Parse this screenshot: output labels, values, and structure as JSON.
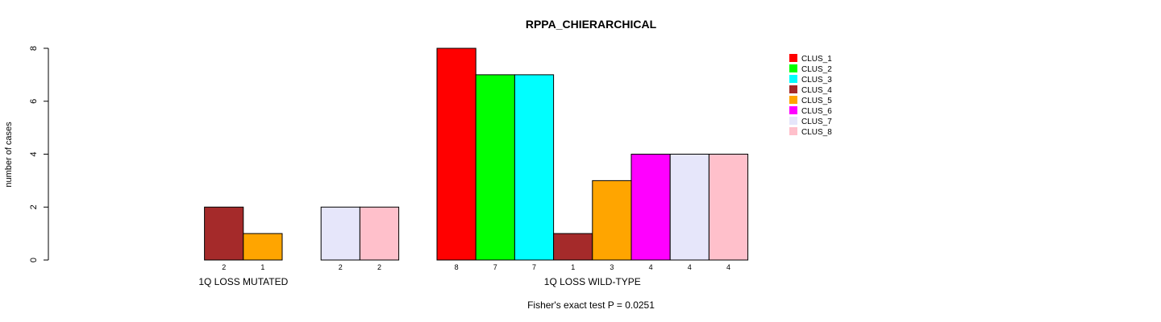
{
  "chart_data": {
    "type": "bar",
    "title": "RPPA_CHIERARCHICAL",
    "xlabel": "",
    "ylabel": "number of cases",
    "ylim": [
      0,
      8
    ],
    "yticks": [
      0,
      2,
      4,
      6,
      8
    ],
    "categories": [
      "1Q LOSS MUTATED",
      "1Q LOSS WILD-TYPE"
    ],
    "series": [
      {
        "name": "CLUS_1",
        "color": "#ff0000",
        "values": [
          0,
          8
        ]
      },
      {
        "name": "CLUS_2",
        "color": "#00ff00",
        "values": [
          0,
          7
        ]
      },
      {
        "name": "CLUS_3",
        "color": "#00ffff",
        "values": [
          0,
          7
        ]
      },
      {
        "name": "CLUS_4",
        "color": "#a52a2a",
        "values": [
          2,
          1
        ]
      },
      {
        "name": "CLUS_5",
        "color": "#ffa500",
        "values": [
          1,
          3
        ]
      },
      {
        "name": "CLUS_6",
        "color": "#ff00ff",
        "values": [
          0,
          4
        ]
      },
      {
        "name": "CLUS_7",
        "color": "#e6e6fa",
        "values": [
          2,
          4
        ]
      },
      {
        "name": "CLUS_8",
        "color": "#ffc0cb",
        "values": [
          2,
          4
        ]
      }
    ],
    "count_labels": [
      [
        "",
        "",
        "",
        "2",
        "1",
        "",
        "2",
        "2"
      ],
      [
        "8",
        "7",
        "7",
        "1",
        "3",
        "4",
        "4",
        "4"
      ]
    ],
    "legend_position": "top-right",
    "footnote": "Fisher's exact test P = 0.0251"
  }
}
